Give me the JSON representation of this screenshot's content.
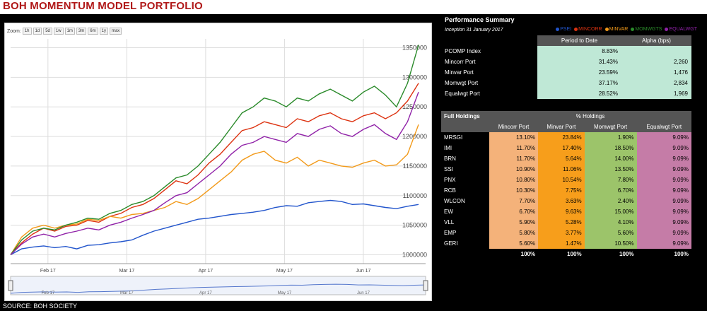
{
  "page": {
    "title": "BOH MOMENTUM MODEL PORTFOLIO",
    "source": "SOURCE: BOH SOCIETY"
  },
  "chart": {
    "zoom_label": "Zoom:",
    "zoom_buttons": [
      "1h",
      "1d",
      "5d",
      "1w",
      "1m",
      "3m",
      "6m",
      "1y",
      "max"
    ]
  },
  "chart_data": {
    "type": "line",
    "x_labels": [
      "Feb 17",
      "Mar 17",
      "Apr 17",
      "May 17",
      "Jun 17"
    ],
    "y_ticks": [
      "1000000",
      "1050000",
      "1100000",
      "1150000",
      "1200000",
      "1250000",
      "1300000",
      "1350000"
    ],
    "ylim": [
      985000,
      1365000
    ],
    "grid": true,
    "legend_position": "top-right",
    "series": [
      {
        "name": "PSEI",
        "color": "#2255cc",
        "values": [
          1000000,
          1010000,
          1013000,
          1015000,
          1012000,
          1014000,
          1010000,
          1016000,
          1017000,
          1020000,
          1022000,
          1025000,
          1033000,
          1040000,
          1045000,
          1050000,
          1055000,
          1060000,
          1062000,
          1065000,
          1068000,
          1070000,
          1072000,
          1075000,
          1080000,
          1083000,
          1082000,
          1088000,
          1090000,
          1092000,
          1090000,
          1085000,
          1086000,
          1083000,
          1080000,
          1078000,
          1082000,
          1085000
        ]
      },
      {
        "name": "MINCORR",
        "color": "#dd3311",
        "values": [
          1000000,
          1020000,
          1035000,
          1045000,
          1040000,
          1048000,
          1050000,
          1058000,
          1055000,
          1065000,
          1070000,
          1080000,
          1085000,
          1095000,
          1110000,
          1125000,
          1120000,
          1135000,
          1155000,
          1170000,
          1190000,
          1210000,
          1215000,
          1225000,
          1220000,
          1215000,
          1230000,
          1225000,
          1235000,
          1240000,
          1230000,
          1225000,
          1235000,
          1240000,
          1230000,
          1240000,
          1260000,
          1290000
        ]
      },
      {
        "name": "MINVAR",
        "color": "#f29a1a",
        "values": [
          1000000,
          1030000,
          1045000,
          1050000,
          1045000,
          1050000,
          1052000,
          1060000,
          1058000,
          1065000,
          1062000,
          1068000,
          1070000,
          1075000,
          1080000,
          1090000,
          1085000,
          1095000,
          1110000,
          1125000,
          1140000,
          1160000,
          1170000,
          1175000,
          1160000,
          1155000,
          1165000,
          1150000,
          1160000,
          1155000,
          1150000,
          1148000,
          1155000,
          1160000,
          1150000,
          1152000,
          1170000,
          1220000
        ]
      },
      {
        "name": "MOMWGTS",
        "color": "#2a8a2a",
        "values": [
          1000000,
          1025000,
          1040000,
          1045000,
          1042000,
          1050000,
          1055000,
          1062000,
          1060000,
          1070000,
          1075000,
          1085000,
          1090000,
          1100000,
          1115000,
          1130000,
          1135000,
          1150000,
          1170000,
          1190000,
          1215000,
          1240000,
          1250000,
          1265000,
          1260000,
          1250000,
          1265000,
          1260000,
          1272000,
          1280000,
          1270000,
          1260000,
          1275000,
          1285000,
          1270000,
          1250000,
          1290000,
          1355000
        ]
      },
      {
        "name": "EQUALWGT",
        "color": "#9022a8",
        "values": [
          1000000,
          1018000,
          1030000,
          1035000,
          1030000,
          1036000,
          1040000,
          1045000,
          1042000,
          1050000,
          1055000,
          1062000,
          1068000,
          1075000,
          1088000,
          1100000,
          1105000,
          1120000,
          1135000,
          1150000,
          1170000,
          1185000,
          1190000,
          1200000,
          1195000,
          1190000,
          1205000,
          1200000,
          1212000,
          1218000,
          1205000,
          1200000,
          1212000,
          1220000,
          1205000,
          1195000,
          1225000,
          1275000
        ]
      }
    ]
  },
  "performance": {
    "title": "Performance Summary",
    "inception": "Inception 31 January 2017",
    "col1": "Period to Date",
    "col2": "Alpha (bps)",
    "rows": [
      {
        "name": "PCOMP Index",
        "ptd": "8.83%",
        "alpha": ""
      },
      {
        "name": "Mincorr Port",
        "ptd": "31.43%",
        "alpha": "2,260"
      },
      {
        "name": "Minvar Port",
        "ptd": "23.59%",
        "alpha": "1,476"
      },
      {
        "name": "Momwgt Port",
        "ptd": "37.17%",
        "alpha": "2,834"
      },
      {
        "name": "Equalwgt Port",
        "ptd": "28.52%",
        "alpha": "1,969"
      }
    ]
  },
  "holdings": {
    "title": "Full Holdings",
    "pct_title": "% Holdings",
    "cols": [
      "Mincorr Port",
      "Minvar Port",
      "Momwgt Port",
      "Equalwgt Port"
    ],
    "rows": [
      {
        "ticker": "MRSGI",
        "v": [
          "13.10%",
          "23.84%",
          "1.90%",
          "9.09%"
        ]
      },
      {
        "ticker": "IMI",
        "v": [
          "11.70%",
          "17.40%",
          "18.50%",
          "9.09%"
        ]
      },
      {
        "ticker": "BRN",
        "v": [
          "11.70%",
          "5.64%",
          "14.00%",
          "9.09%"
        ]
      },
      {
        "ticker": "SSI",
        "v": [
          "10.90%",
          "11.06%",
          "13.50%",
          "9.09%"
        ]
      },
      {
        "ticker": "PNX",
        "v": [
          "10.80%",
          "10.54%",
          "7.80%",
          "9.09%"
        ]
      },
      {
        "ticker": "RCB",
        "v": [
          "10.30%",
          "7.75%",
          "6.70%",
          "9.09%"
        ]
      },
      {
        "ticker": "WLCON",
        "v": [
          "7.70%",
          "3.63%",
          "2.40%",
          "9.09%"
        ]
      },
      {
        "ticker": "EW",
        "v": [
          "6.70%",
          "9.63%",
          "15.00%",
          "9.09%"
        ]
      },
      {
        "ticker": "VLL",
        "v": [
          "5.90%",
          "5.28%",
          "4.10%",
          "9.09%"
        ]
      },
      {
        "ticker": "EMP",
        "v": [
          "5.80%",
          "3.77%",
          "5.60%",
          "9.09%"
        ]
      },
      {
        "ticker": "GERI",
        "v": [
          "5.60%",
          "1.47%",
          "10.50%",
          "9.09%"
        ]
      }
    ],
    "totals": [
      "100%",
      "100%",
      "100%",
      "100%"
    ]
  }
}
